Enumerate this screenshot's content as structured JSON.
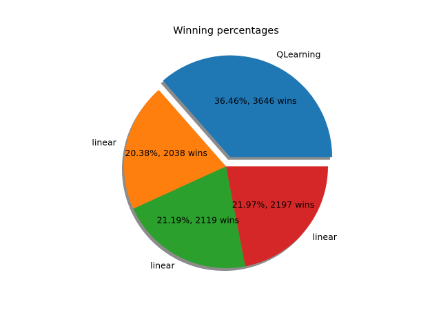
{
  "chart_data": {
    "type": "pie",
    "title": "Winning percentages",
    "slices": [
      {
        "label": "QLearning",
        "percent": 36.46,
        "wins": 3646,
        "text": "36.46%, 3646 wins",
        "color": "#1f77b4",
        "exploded": true
      },
      {
        "label": "linear",
        "percent": 20.38,
        "wins": 2038,
        "text": "20.38%, 2038 wins",
        "color": "#ff7f0e",
        "exploded": false
      },
      {
        "label": "linear",
        "percent": 21.19,
        "wins": 2119,
        "text": "21.19%, 2119 wins",
        "color": "#2ca02c",
        "exploded": false
      },
      {
        "label": "linear",
        "percent": 21.97,
        "wins": 2197,
        "text": "21.97%, 2197 wins",
        "color": "#d62728",
        "exploded": false
      }
    ],
    "start_angle": 0,
    "shadow": true
  }
}
